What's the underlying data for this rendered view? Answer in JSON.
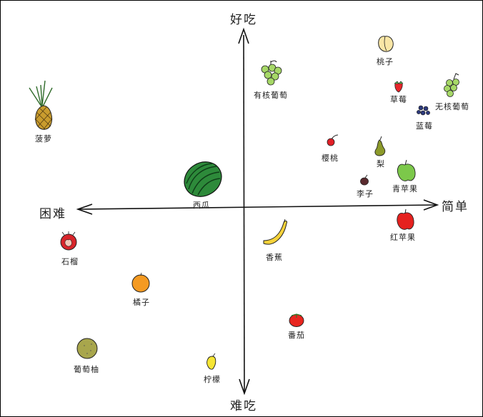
{
  "axes": {
    "top": "好吃",
    "bottom": "难吃",
    "left": "困难",
    "right": "简单"
  },
  "items": [
    {
      "id": "peach",
      "label": "桃子",
      "icon": "peach-icon"
    },
    {
      "id": "green-grapes",
      "label": "有核葡萄",
      "icon": "grapes-icon"
    },
    {
      "id": "strawberry",
      "label": "草莓",
      "icon": "strawberry-icon"
    },
    {
      "id": "seedless-grapes",
      "label": "无核葡萄",
      "icon": "grapes-icon"
    },
    {
      "id": "blueberry",
      "label": "蓝莓",
      "icon": "blueberry-icon"
    },
    {
      "id": "pineapple",
      "label": "菠萝",
      "icon": "pineapple-icon"
    },
    {
      "id": "cherry",
      "label": "樱桃",
      "icon": "cherry-icon"
    },
    {
      "id": "pear",
      "label": "梨",
      "icon": "pear-icon"
    },
    {
      "id": "green-apple",
      "label": "青苹果",
      "icon": "apple-icon"
    },
    {
      "id": "plum",
      "label": "李子",
      "icon": "plum-icon"
    },
    {
      "id": "watermelon",
      "label": "西瓜",
      "icon": "watermelon-icon"
    },
    {
      "id": "red-apple",
      "label": "红苹果",
      "icon": "apple-icon"
    },
    {
      "id": "pomegranate",
      "label": "石榴",
      "icon": "pomegranate-icon"
    },
    {
      "id": "banana",
      "label": "香蕉",
      "icon": "banana-icon"
    },
    {
      "id": "orange",
      "label": "橘子",
      "icon": "orange-icon"
    },
    {
      "id": "tomato",
      "label": "番茄",
      "icon": "tomato-icon"
    },
    {
      "id": "grapefruit",
      "label": "葡萄柚",
      "icon": "grapefruit-icon"
    },
    {
      "id": "lemon",
      "label": "柠檬",
      "icon": "lemon-icon"
    }
  ]
}
